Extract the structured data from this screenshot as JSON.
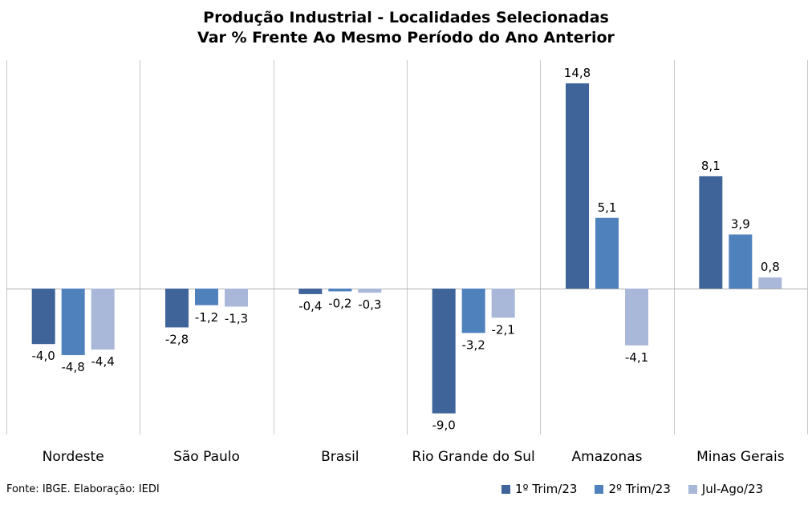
{
  "chart_data": {
    "type": "bar",
    "title": [
      "Produção Industrial - Localidades Selecionadas",
      "Var % Frente Ao Mesmo Período do Ano Anterior"
    ],
    "categories": [
      "Nordeste",
      "São Paulo",
      "Brasil",
      "Rio Grande do Sul",
      "Amazonas",
      "Minas Gerais"
    ],
    "series": [
      {
        "name": "1º Trim/23",
        "color": "#3f6499",
        "values": [
          -4.0,
          -2.8,
          -0.4,
          -9.0,
          14.8,
          8.1
        ],
        "labels": [
          "-4,0",
          "-2,8",
          "-0,4",
          "-9,0",
          "14,8",
          "8,1"
        ]
      },
      {
        "name": "2º Trim/23",
        "color": "#4f81bd",
        "values": [
          -4.8,
          -1.2,
          -0.2,
          -3.2,
          5.1,
          3.9
        ],
        "labels": [
          "-4,8",
          "-1,2",
          "-0,2",
          "-3,2",
          "5,1",
          "3,9"
        ]
      },
      {
        "name": "Jul-Ago/23",
        "color": "#a9b8d8",
        "values": [
          -4.4,
          -1.3,
          -0.3,
          -2.1,
          -4.1,
          0.8
        ],
        "labels": [
          "-4,4",
          "-1,3",
          "-0,3",
          "-2,1",
          "-4,1",
          "0,8"
        ]
      }
    ],
    "ylim": [
      -10.5,
      16.8
    ],
    "grid": "vertical category separators",
    "legend_position": "bottom-right",
    "source": "Fonte: IBGE. Elaboração: IEDI"
  }
}
